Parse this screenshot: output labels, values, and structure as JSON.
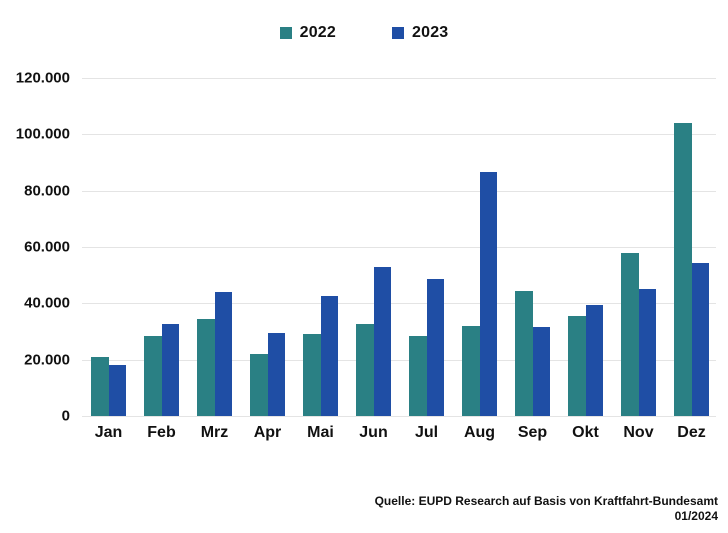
{
  "legend": {
    "items": [
      {
        "label": "2022",
        "color": "#2a8084"
      },
      {
        "label": "2023",
        "color": "#1f4ea5"
      }
    ]
  },
  "chart_data": {
    "type": "bar",
    "title": "",
    "xlabel": "",
    "ylabel": "",
    "categories": [
      "Jan",
      "Feb",
      "Mrz",
      "Apr",
      "Mai",
      "Jun",
      "Jul",
      "Aug",
      "Sep",
      "Okt",
      "Nov",
      "Dez"
    ],
    "series": [
      {
        "name": "2022",
        "color": "#2a8084",
        "values": [
          21000,
          28500,
          34500,
          22000,
          29000,
          32500,
          28500,
          32000,
          44500,
          35500,
          58000,
          104000
        ]
      },
      {
        "name": "2023",
        "color": "#1f4ea5",
        "values": [
          18000,
          32500,
          44000,
          29500,
          42500,
          53000,
          48500,
          86500,
          31500,
          39500,
          45000,
          54500
        ]
      }
    ],
    "ylim": [
      0,
      120000
    ],
    "yticks": [
      {
        "value": 0,
        "label": "0"
      },
      {
        "value": 20000,
        "label": "20.000"
      },
      {
        "value": 40000,
        "label": "40.000"
      },
      {
        "value": 60000,
        "label": "60.000"
      },
      {
        "value": 80000,
        "label": "80.000"
      },
      {
        "value": 100000,
        "label": "100.000"
      },
      {
        "value": 120000,
        "label": "120.000"
      }
    ],
    "grid": true,
    "legend_position": "top"
  },
  "source": {
    "line1": "Quelle: EUPD Research auf Basis von Kraftfahrt-Bundesamt",
    "line2": "01/2024"
  }
}
